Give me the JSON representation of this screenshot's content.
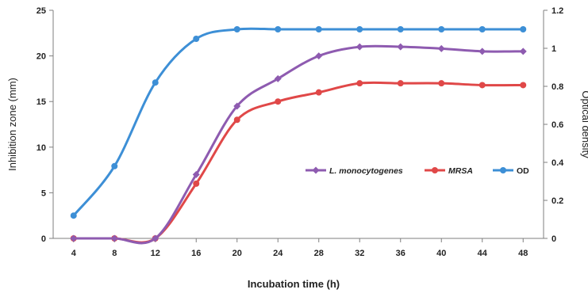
{
  "chart_data": {
    "type": "line",
    "xlabel": "Incubation time (h)",
    "ylabel_left": "Inhibition zone (mm)",
    "ylabel_right": "Optical density",
    "x": [
      4,
      8,
      12,
      16,
      20,
      24,
      28,
      32,
      36,
      40,
      44,
      48
    ],
    "ylim_left": [
      0,
      25
    ],
    "yticks_left": [
      0,
      5,
      10,
      15,
      20,
      25
    ],
    "ylim_right": [
      0,
      1.2
    ],
    "yticks_right": [
      "0",
      "0.2",
      "0.4",
      "0.6",
      "0.8",
      "1",
      "1.2"
    ],
    "grid": false,
    "legend_position": "center-right",
    "series": [
      {
        "name": "L. monocytogenes",
        "axis": "left",
        "color": "#8e5bb0",
        "marker": "diamond",
        "values": [
          0,
          0,
          0,
          7,
          14.5,
          17.5,
          20,
          21,
          21,
          20.8,
          20.5,
          20.5
        ]
      },
      {
        "name": "MRSA",
        "axis": "left",
        "color": "#e04848",
        "marker": "circle",
        "values": [
          0,
          0,
          0,
          6,
          13,
          15,
          16,
          17,
          17,
          17,
          16.8,
          16.8
        ]
      },
      {
        "name": "OD",
        "axis": "right",
        "color": "#3d8fd6",
        "marker": "circle",
        "values": [
          0.12,
          0.38,
          0.82,
          1.05,
          1.1,
          1.1,
          1.1,
          1.1,
          1.1,
          1.1,
          1.1,
          1.1
        ]
      }
    ]
  }
}
